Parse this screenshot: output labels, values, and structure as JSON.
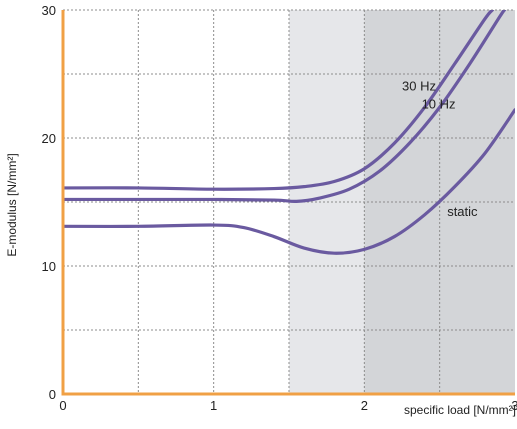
{
  "chart_data": {
    "type": "line",
    "xlabel": "specific load [N/mm²]",
    "ylabel": "E-modulus [N/mm²]",
    "xlim": [
      0,
      3
    ],
    "ylim": [
      0,
      30
    ],
    "x_ticks": [
      {
        "value": 0,
        "label": "0"
      },
      {
        "value": 1,
        "label": "1"
      },
      {
        "value": 2,
        "label": "2"
      },
      {
        "value": 3,
        "label": "3"
      }
    ],
    "y_ticks": [
      {
        "value": 0,
        "label": "0"
      },
      {
        "value": 10,
        "label": "10"
      },
      {
        "value": 20,
        "label": "20"
      },
      {
        "value": 30,
        "label": "30"
      }
    ],
    "grid": true,
    "shaded_regions": [
      {
        "x_from": 1.5,
        "x_to": 2.0,
        "color": "#e6e7ea"
      },
      {
        "x_from": 2.0,
        "x_to": 3.0,
        "color": "#d3d5d8"
      }
    ],
    "series": [
      {
        "name": "30 Hz",
        "label_at": [
          2.25,
          23.7
        ],
        "points": [
          [
            0,
            16.1
          ],
          [
            0.5,
            16.1
          ],
          [
            1.0,
            16.0
          ],
          [
            1.4,
            16.05
          ],
          [
            1.6,
            16.2
          ],
          [
            1.8,
            16.6
          ],
          [
            2.0,
            17.6
          ],
          [
            2.2,
            19.6
          ],
          [
            2.4,
            22.4
          ],
          [
            2.6,
            25.8
          ],
          [
            2.8,
            29.3
          ],
          [
            2.85,
            30
          ]
        ]
      },
      {
        "name": "10 Hz",
        "label_at": [
          2.38,
          22.3
        ],
        "points": [
          [
            0,
            15.2
          ],
          [
            0.5,
            15.2
          ],
          [
            1.0,
            15.2
          ],
          [
            1.4,
            15.15
          ],
          [
            1.55,
            15.05
          ],
          [
            1.7,
            15.3
          ],
          [
            1.9,
            16.0
          ],
          [
            2.1,
            17.4
          ],
          [
            2.3,
            19.6
          ],
          [
            2.5,
            22.4
          ],
          [
            2.7,
            25.8
          ],
          [
            2.9,
            29.5
          ],
          [
            2.93,
            30
          ]
        ]
      },
      {
        "name": "static",
        "label_at": [
          2.55,
          13.9
        ],
        "points": [
          [
            0,
            13.1
          ],
          [
            0.5,
            13.1
          ],
          [
            1.0,
            13.2
          ],
          [
            1.2,
            13.0
          ],
          [
            1.4,
            12.3
          ],
          [
            1.6,
            11.4
          ],
          [
            1.8,
            11.0
          ],
          [
            2.0,
            11.3
          ],
          [
            2.2,
            12.3
          ],
          [
            2.4,
            14.0
          ],
          [
            2.6,
            16.2
          ],
          [
            2.8,
            18.8
          ],
          [
            3.0,
            22.2
          ]
        ]
      }
    ]
  },
  "colors": {
    "axis": "#f0a045",
    "series": "#6a5aa0",
    "grid": "#8c8c8c"
  }
}
